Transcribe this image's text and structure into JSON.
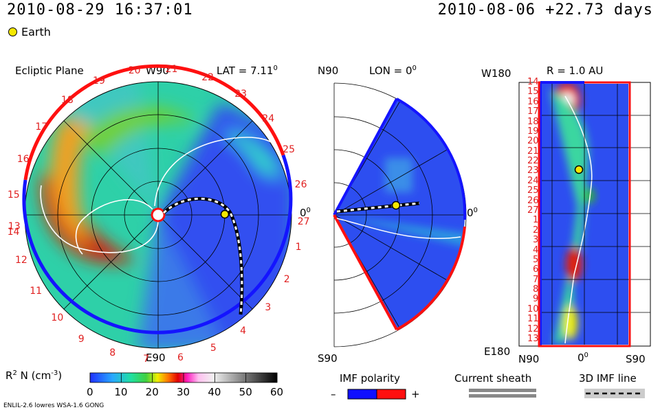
{
  "header": {
    "datetime": "2010-08-29 16:37:01",
    "reference": "2010-08-06 +22.73 days",
    "legend_earth": "Earth"
  },
  "colors": {
    "earth": "#f5e800",
    "polarity_negative": "#1010ff",
    "polarity_positive": "#ff1010",
    "ring_red": "#ff1010",
    "ring_blue": "#1414ff"
  },
  "chart_data": [
    {
      "type": "heatmap",
      "title": "Ecliptic Plane",
      "top_label": "W90",
      "bottom_label": "E90",
      "right_label": "0",
      "right_label_sup": "0",
      "lat_label": "LAT = 7.11",
      "lat_sup": "0",
      "carrington_left": [
        "14",
        "15",
        "16",
        "17",
        "18",
        "19",
        "20",
        "21",
        "22",
        "23",
        "24",
        "25",
        "26",
        "27"
      ],
      "carrington_right": [
        "1",
        "2",
        "3",
        "4",
        "5",
        "6",
        "7",
        "8",
        "9",
        "10",
        "11",
        "12",
        "13"
      ]
    },
    {
      "type": "heatmap",
      "title": "LON = 0",
      "title_sup": "0",
      "top_label": "N90",
      "bottom_label": "S90",
      "right_label": "0",
      "right_label_sup": "0"
    },
    {
      "type": "heatmap",
      "title": "R = 1.0 AU",
      "top_label": "W180",
      "bottom_label": "E180",
      "x_labels": [
        "N90",
        "0",
        "S90"
      ],
      "x_label_sup": "0",
      "y_labels": [
        "14",
        "15",
        "16",
        "17",
        "18",
        "19",
        "20",
        "21",
        "22",
        "23",
        "24",
        "25",
        "26",
        "27",
        "1",
        "2",
        "3",
        "4",
        "5",
        "6",
        "7",
        "8",
        "9",
        "10",
        "11",
        "12",
        "13"
      ]
    }
  ],
  "colorbar": {
    "label": "R",
    "label_sup": "2",
    "label_rest": "N (cm",
    "label_exp": "-3",
    "label_close": ")",
    "ticks": [
      "0",
      "10",
      "20",
      "30",
      "40",
      "50",
      "60"
    ],
    "range": [
      0,
      60
    ]
  },
  "legend": {
    "imf_polarity": "IMF polarity",
    "minus": "–",
    "plus": "+",
    "current_sheath": "Current sheath",
    "imf_line": "3D IMF line"
  },
  "footer": {
    "model": "ENLIL-2.6 lowres WSA-1.6 GONG"
  }
}
